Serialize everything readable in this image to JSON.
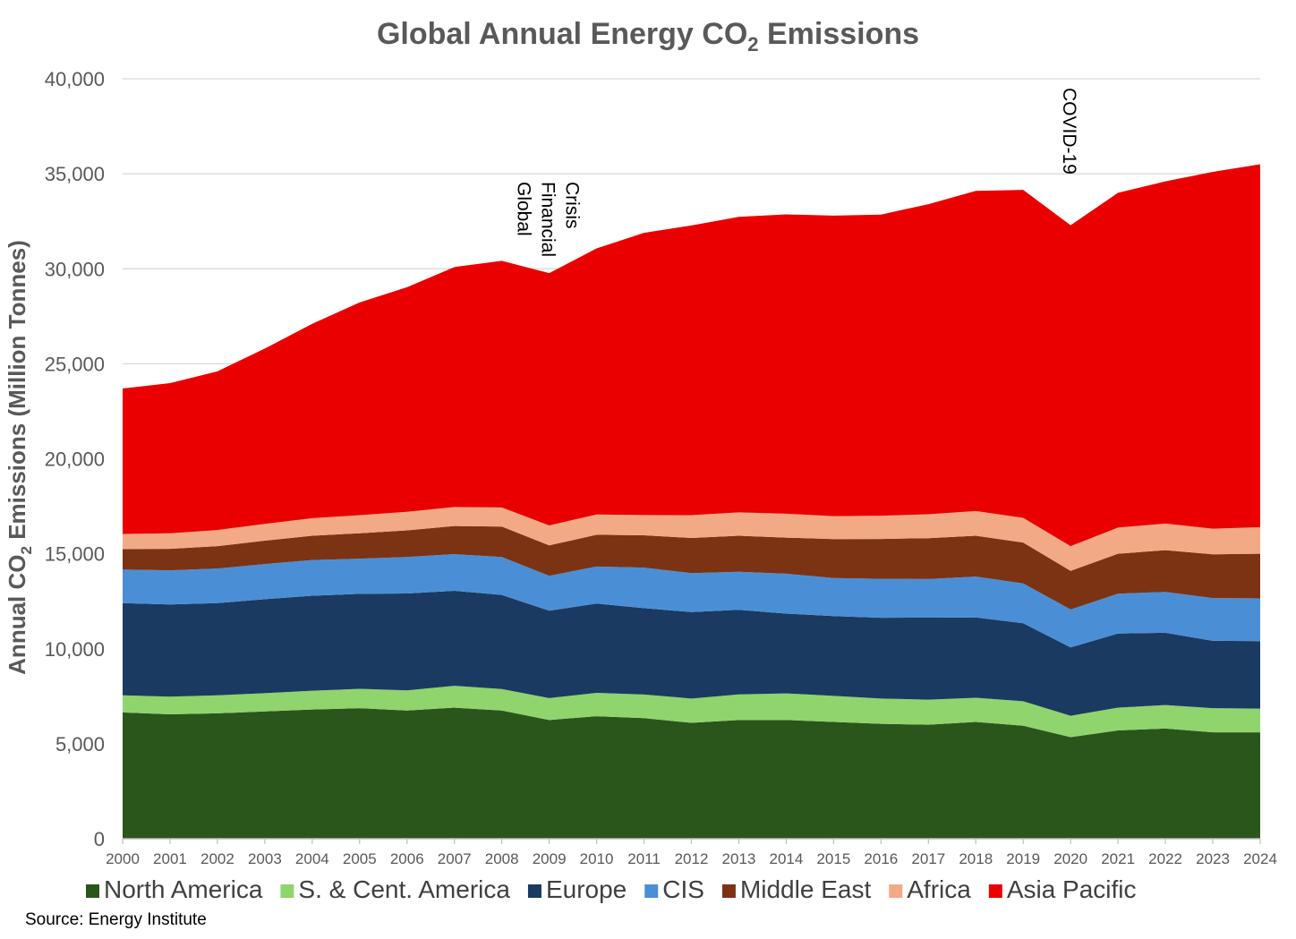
{
  "chart_data": {
    "type": "area",
    "stacked": true,
    "title": "Global Annual Energy CO",
    "title_subscript": "2",
    "title_suffix": " Emissions",
    "ylabel": "Annual CO",
    "ylabel_subscript": "2",
    "ylabel_suffix": " Emissions (Million Tonnes)",
    "xlabel": "",
    "ylim": [
      0,
      40000
    ],
    "yticks": [
      "0",
      "5,000",
      "10,000",
      "15,000",
      "20,000",
      "25,000",
      "30,000",
      "35,000",
      "40,000"
    ],
    "ytick_values": [
      0,
      5000,
      10000,
      15000,
      20000,
      25000,
      30000,
      35000,
      40000
    ],
    "grid": "horizontal",
    "legend_position": "bottom",
    "x": [
      "2000",
      "2001",
      "2002",
      "2003",
      "2004",
      "2005",
      "2006",
      "2007",
      "2008",
      "2009",
      "2010",
      "2011",
      "2012",
      "2013",
      "2014",
      "2015",
      "2016",
      "2017",
      "2018",
      "2019",
      "2020",
      "2021",
      "2022",
      "2023",
      "2024"
    ],
    "series": [
      {
        "name": "North America",
        "color": "#2a561b",
        "values": [
          6650,
          6550,
          6600,
          6700,
          6800,
          6870,
          6750,
          6900,
          6750,
          6250,
          6450,
          6350,
          6100,
          6250,
          6250,
          6150,
          6050,
          6000,
          6150,
          5950,
          5350,
          5700,
          5800,
          5600,
          5600
        ]
      },
      {
        "name": "S. & Cent. America",
        "color": "#8fd46d",
        "values": [
          900,
          930,
          950,
          960,
          990,
          1020,
          1060,
          1150,
          1130,
          1150,
          1230,
          1240,
          1280,
          1350,
          1400,
          1370,
          1330,
          1320,
          1270,
          1290,
          1120,
          1200,
          1240,
          1270,
          1250
        ]
      },
      {
        "name": "Europe",
        "color": "#1a3a62",
        "values": [
          4850,
          4850,
          4850,
          4950,
          5000,
          5000,
          5100,
          5000,
          4950,
          4600,
          4700,
          4550,
          4550,
          4450,
          4200,
          4200,
          4250,
          4320,
          4230,
          4100,
          3600,
          3900,
          3800,
          3550,
          3550
        ]
      },
      {
        "name": "CIS",
        "color": "#4a8fd6",
        "values": [
          1770,
          1800,
          1820,
          1850,
          1880,
          1850,
          1920,
          1930,
          2000,
          1840,
          1950,
          2130,
          2050,
          2000,
          2100,
          2000,
          2050,
          2030,
          2150,
          2100,
          2000,
          2100,
          2150,
          2250,
          2250
        ]
      },
      {
        "name": "Middle East",
        "color": "#7c3313",
        "values": [
          1080,
          1130,
          1180,
          1230,
          1280,
          1340,
          1400,
          1480,
          1600,
          1600,
          1670,
          1700,
          1850,
          1900,
          1900,
          2050,
          2100,
          2150,
          2150,
          2150,
          2030,
          2100,
          2200,
          2300,
          2350
        ]
      },
      {
        "name": "Africa",
        "color": "#f2a985",
        "values": [
          790,
          820,
          850,
          880,
          920,
          950,
          980,
          1000,
          1010,
          1050,
          1070,
          1070,
          1200,
          1230,
          1260,
          1210,
          1220,
          1260,
          1300,
          1300,
          1300,
          1380,
          1400,
          1350,
          1400
        ]
      },
      {
        "name": "Asia Pacific",
        "color": "#ea0000",
        "values": [
          7660,
          7900,
          8350,
          9230,
          10230,
          11200,
          11820,
          12630,
          12980,
          13280,
          14000,
          14850,
          15250,
          15550,
          15750,
          15820,
          15850,
          16320,
          16850,
          17260,
          16890,
          17620,
          18010,
          18780,
          19100
        ]
      }
    ],
    "annotations": [
      {
        "text_lines": [
          "Global",
          "Financial",
          "Crisis"
        ],
        "at_x": "2009"
      },
      {
        "text_lines": [
          "COVID-19"
        ],
        "at_x": "2020"
      }
    ]
  },
  "source": "Source: Energy Institute"
}
